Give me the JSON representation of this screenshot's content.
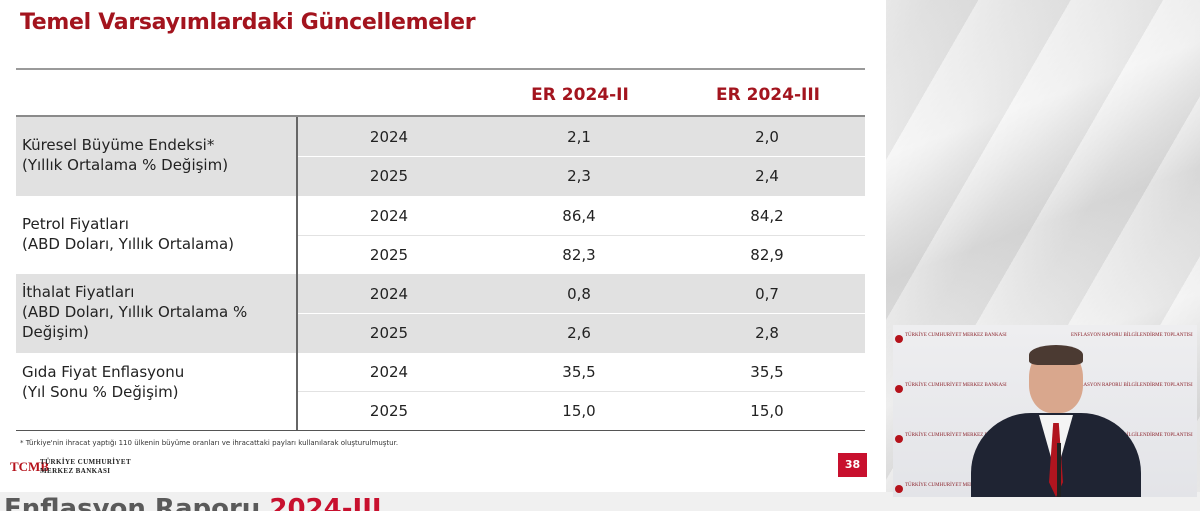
{
  "slide": {
    "title": "Temel Varsayımlardaki Güncellemeler",
    "columns": [
      "ER 2024-II",
      "ER 2024-III"
    ],
    "groups": [
      {
        "label": "Küresel Büyüme Endeksi*\n(Yıllık Ortalama % Değişim)",
        "rows": [
          {
            "year": "2024",
            "v1": "2,1",
            "v2": "2,0"
          },
          {
            "year": "2025",
            "v1": "2,3",
            "v2": "2,4"
          }
        ]
      },
      {
        "label": "Petrol Fiyatları\n(ABD Doları, Yıllık Ortalama)",
        "rows": [
          {
            "year": "2024",
            "v1": "86,4",
            "v2": "84,2"
          },
          {
            "year": "2025",
            "v1": "82,3",
            "v2": "82,9"
          }
        ]
      },
      {
        "label": "İthalat Fiyatları\n(ABD Doları, Yıllık Ortalama %\nDeğişim)",
        "rows": [
          {
            "year": "2024",
            "v1": "0,8",
            "v2": "0,7"
          },
          {
            "year": "2025",
            "v1": "2,6",
            "v2": "2,8"
          }
        ]
      },
      {
        "label": "Gıda Fiyat Enflasyonu\n(Yıl Sonu % Değişim)",
        "rows": [
          {
            "year": "2024",
            "v1": "35,5",
            "v2": "35,5"
          },
          {
            "year": "2025",
            "v1": "15,0",
            "v2": "15,0"
          }
        ]
      }
    ],
    "footnote": "* Türkiye'nin ihracat yaptığı 110 ülkenin büyüme oranları ve ihracattaki payları kullanılarak oluşturulmuştur.",
    "logo": {
      "line1": "TÜRKİYE CUMHURİYET",
      "line2": "MERKEZ BANKASI",
      "emblem": "TCMB"
    },
    "page_number": "38"
  },
  "next_slide_peek": {
    "text_main": "Enflasyon Raporu ",
    "text_accent": "2024-III"
  },
  "video": {
    "backdrop_brand": "TÜRKİYE CUMHURİYET MERKEZ BANKASI",
    "backdrop_event": "ENFLASYON RAPORU BİLGİLENDİRME TOPLANTISI"
  },
  "colors": {
    "accent": "#a3141e",
    "shade": "#e1e1e1",
    "page_badge": "#c8102e"
  }
}
